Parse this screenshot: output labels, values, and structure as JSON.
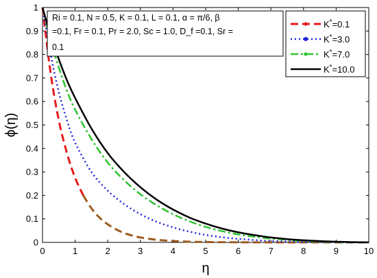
{
  "chart_data": {
    "type": "line",
    "xlabel": "η",
    "ylabel": "ϕ(η)",
    "xlim": [
      0,
      10
    ],
    "ylim": [
      0,
      1
    ],
    "xticks": [
      "0",
      "1",
      "2",
      "3",
      "4",
      "5",
      "6",
      "7",
      "8",
      "9",
      "10"
    ],
    "yticks": [
      "0",
      "0.1",
      "0.2",
      "0.3",
      "0.4",
      "0.5",
      "0.6",
      "0.7",
      "0.8",
      "0.9",
      "1"
    ],
    "grid": false,
    "legend_position": "top-right",
    "annotation": [
      "Ri = 0.1, N = 0.5, K = 0.1, L = 0.1, α = π/6, β",
      "=0.1, Fr = 0.1, Pr = 2.0, Sc = 1.0, D_f =0.1, Sr =",
      "0.1"
    ],
    "series": [
      {
        "name": "K*=0.1",
        "color": "#e41a1c",
        "tail_color": "#9c5a1e",
        "style": "dashed",
        "x": [
          0,
          0.25,
          0.5,
          0.75,
          1,
          1.25,
          1.5,
          1.75,
          2,
          2.25,
          2.5,
          2.75,
          3,
          3.5,
          4,
          4.5,
          5,
          6,
          7,
          8,
          9,
          10
        ],
        "y": [
          1.0,
          0.72,
          0.52,
          0.38,
          0.275,
          0.2,
          0.145,
          0.105,
          0.077,
          0.056,
          0.04,
          0.029,
          0.021,
          0.011,
          0.006,
          0.003,
          0.0015,
          0.0004,
          0.0001,
          0,
          0,
          0
        ]
      },
      {
        "name": "K*=3.0",
        "color": "#1f1fdc",
        "style": "dotted",
        "x": [
          0,
          0.25,
          0.5,
          0.75,
          1,
          1.5,
          2,
          2.5,
          3,
          3.5,
          4,
          4.5,
          5,
          5.5,
          6,
          6.5,
          7,
          7.5,
          8,
          9,
          10
        ],
        "y": [
          1.0,
          0.8,
          0.64,
          0.52,
          0.425,
          0.3,
          0.22,
          0.163,
          0.12,
          0.088,
          0.064,
          0.046,
          0.032,
          0.022,
          0.015,
          0.01,
          0.006,
          0.004,
          0.002,
          0.0006,
          0
        ]
      },
      {
        "name": "K*=7.0",
        "color": "#2fc22f",
        "style": "dash-dot",
        "x": [
          0,
          0.25,
          0.5,
          0.75,
          1,
          1.5,
          2,
          2.5,
          3,
          3.5,
          4,
          4.5,
          5,
          5.5,
          6,
          6.5,
          7,
          7.5,
          8,
          8.5,
          9,
          9.5,
          10
        ],
        "y": [
          1.0,
          0.86,
          0.745,
          0.645,
          0.565,
          0.44,
          0.34,
          0.265,
          0.205,
          0.158,
          0.12,
          0.09,
          0.066,
          0.048,
          0.034,
          0.024,
          0.016,
          0.011,
          0.007,
          0.004,
          0.002,
          0.001,
          0
        ]
      },
      {
        "name": "K*=10.0",
        "color": "#000000",
        "style": "solid",
        "x": [
          0,
          0.25,
          0.5,
          0.75,
          1,
          1.5,
          2,
          2.5,
          3,
          3.5,
          4,
          4.5,
          5,
          5.5,
          6,
          6.5,
          7,
          7.5,
          8,
          8.5,
          9,
          9.5,
          10
        ],
        "y": [
          1.0,
          0.88,
          0.78,
          0.69,
          0.615,
          0.485,
          0.38,
          0.3,
          0.235,
          0.182,
          0.14,
          0.106,
          0.08,
          0.059,
          0.043,
          0.031,
          0.021,
          0.014,
          0.009,
          0.0055,
          0.003,
          0.001,
          0
        ]
      }
    ]
  }
}
